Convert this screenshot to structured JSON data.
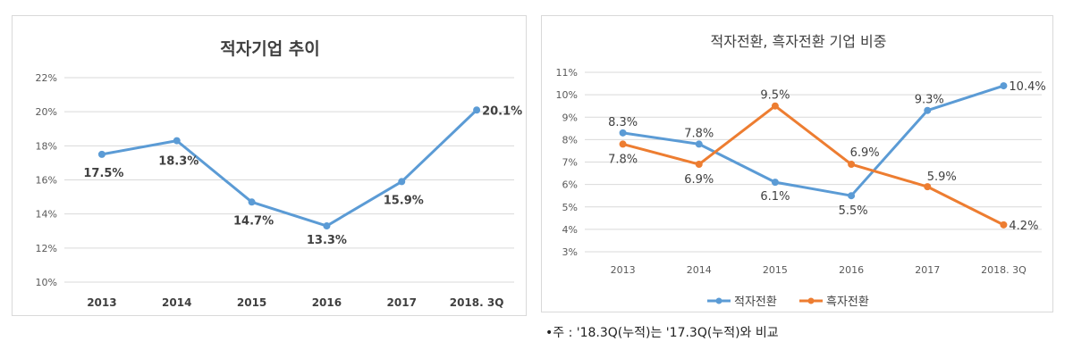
{
  "chart_data": [
    {
      "type": "line",
      "title": "적자기업 추이",
      "categories": [
        "2013",
        "2014",
        "2015",
        "2016",
        "2017",
        "2018. 3Q"
      ],
      "series": [
        {
          "values": [
            17.5,
            18.3,
            14.7,
            13.3,
            15.9,
            20.1
          ],
          "color": "#5b9bd5",
          "labels": [
            "17.5%",
            "18.3%",
            "14.7%",
            "13.3%",
            "15.9%",
            "20.1%"
          ]
        }
      ],
      "yticks": [
        "10%",
        "12%",
        "14%",
        "16%",
        "18%",
        "20%",
        "22%"
      ],
      "ylim": [
        10,
        22
      ],
      "grid": true,
      "legend": "none"
    },
    {
      "type": "line",
      "title": "적자전환, 흑자전환 기업 비중",
      "categories": [
        "2013",
        "2014",
        "2015",
        "2016",
        "2017",
        "2018. 3Q"
      ],
      "series": [
        {
          "name": "적자전환",
          "values": [
            8.3,
            7.8,
            6.1,
            5.5,
            9.3,
            10.4
          ],
          "color": "#5b9bd5",
          "labels": [
            "8.3%",
            "7.8%",
            "6.1%",
            "5.5%",
            "9.3%",
            "10.4%"
          ]
        },
        {
          "name": "흑자전환",
          "values": [
            7.8,
            6.9,
            9.5,
            6.9,
            5.9,
            4.2
          ],
          "color": "#ed7d31",
          "labels": [
            "7.8%",
            "6.9%",
            "9.5%",
            "6.9%",
            "5.9%",
            "4.2%"
          ]
        }
      ],
      "yticks": [
        "3%",
        "4%",
        "5%",
        "6%",
        "7%",
        "8%",
        "9%",
        "10%",
        "11%"
      ],
      "ylim": [
        3,
        11
      ],
      "grid": true,
      "legend": "bottom"
    }
  ],
  "note": "•주 : '18.3Q(누적)는 '17.3Q(누적)와 비교"
}
